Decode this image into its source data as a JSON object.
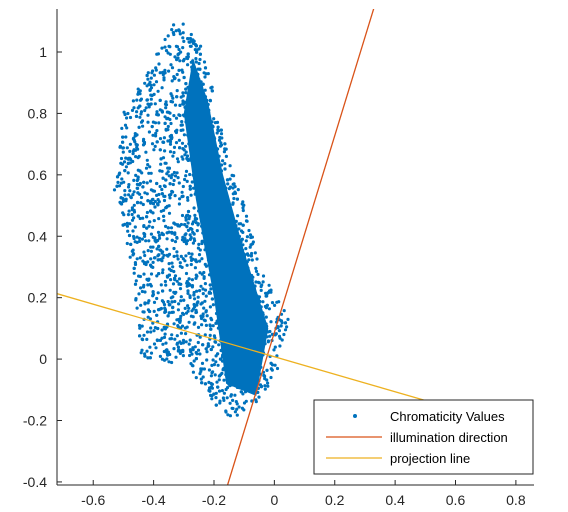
{
  "chart_data": {
    "type": "scatter",
    "xlim": [
      -0.72,
      0.86
    ],
    "ylim": [
      -0.41,
      1.14
    ],
    "xticks": [
      -0.6,
      -0.4,
      -0.2,
      0,
      0.2,
      0.4,
      0.6,
      0.8
    ],
    "yticks": [
      -0.4,
      -0.2,
      0,
      0.2,
      0.4,
      0.6,
      0.8,
      1
    ],
    "xtick_labels": [
      "-0.6",
      "-0.4",
      "-0.2",
      "0",
      "0.2",
      "0.4",
      "0.6",
      "0.8"
    ],
    "ytick_labels": [
      "-0.4",
      "-0.2",
      "0",
      "0.2",
      "0.4",
      "0.6",
      "0.8",
      "1"
    ],
    "grid": false,
    "legend_position": "bottom-right",
    "series": [
      {
        "name": "Chromaticity Values",
        "kind": "scatter",
        "color": "#0072BD",
        "cluster_outline": [
          [
            -0.5,
            0.8
          ],
          [
            -0.32,
            1.12
          ],
          [
            -0.23,
            1.0
          ],
          [
            -0.17,
            0.72
          ],
          [
            -0.09,
            0.48
          ],
          [
            -0.04,
            0.28
          ],
          [
            0.05,
            0.13
          ],
          [
            0.01,
            -0.05
          ],
          [
            -0.09,
            -0.18
          ],
          [
            -0.16,
            -0.19
          ],
          [
            -0.3,
            -0.02
          ],
          [
            -0.44,
            0.0
          ],
          [
            -0.47,
            0.3
          ],
          [
            -0.53,
            0.55
          ]
        ],
        "dense_core": [
          [
            -0.27,
            0.98
          ],
          [
            -0.22,
            0.84
          ],
          [
            -0.17,
            0.6
          ],
          [
            -0.1,
            0.35
          ],
          [
            -0.02,
            0.1
          ],
          [
            -0.06,
            -0.12
          ],
          [
            -0.16,
            -0.08
          ],
          [
            -0.2,
            0.2
          ],
          [
            -0.26,
            0.52
          ],
          [
            -0.3,
            0.8
          ]
        ]
      },
      {
        "name": "illumination direction",
        "kind": "line",
        "color": "#D95319",
        "points": [
          [
            -0.155,
            -0.41
          ],
          [
            0.335,
            1.16
          ]
        ]
      },
      {
        "name": "projection line",
        "kind": "line",
        "color": "#EDB120",
        "points": [
          [
            -0.72,
            0.213
          ],
          [
            0.5,
            -0.135
          ]
        ]
      }
    ]
  }
}
